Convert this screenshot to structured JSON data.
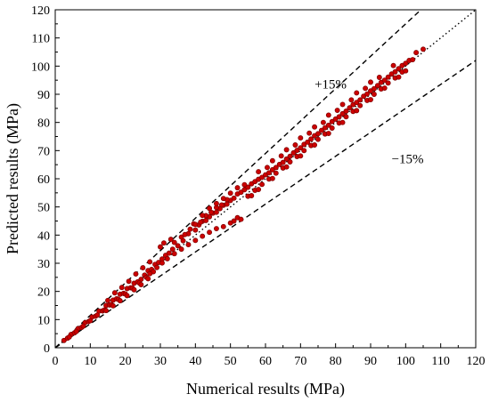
{
  "chart_data": {
    "type": "scatter",
    "xlabel": "Numerical results (MPa)",
    "ylabel": "Predicted results (MPa)",
    "xlim": [
      0,
      120
    ],
    "ylim": [
      0,
      120
    ],
    "x_ticks": [
      0,
      10,
      20,
      30,
      40,
      50,
      60,
      70,
      80,
      90,
      100,
      110,
      120
    ],
    "y_ticks": [
      0,
      10,
      20,
      30,
      40,
      50,
      60,
      70,
      80,
      90,
      100,
      110,
      120
    ],
    "grid": false,
    "marker_color": "#cc0000",
    "marker_edge_color": "#7a0000",
    "reference_lines": [
      {
        "slope": 1.0,
        "style": "dotted"
      },
      {
        "slope": 1.15,
        "style": "dashed",
        "label": "+15%"
      },
      {
        "slope": 0.85,
        "style": "dashed",
        "label": "−15%"
      }
    ],
    "series": [
      {
        "points": [
          [
            2.5,
            2.6
          ],
          [
            3.5,
            3.4
          ],
          [
            4.5,
            4.7
          ],
          [
            5.5,
            5.3
          ],
          [
            6.5,
            6.8
          ],
          [
            7.5,
            7.2
          ],
          [
            8.5,
            8.9
          ],
          [
            9.5,
            9.3
          ],
          [
            10.5,
            10.9
          ],
          [
            11.5,
            11.2
          ],
          [
            12.5,
            13.0
          ],
          [
            13.5,
            13.1
          ],
          [
            14.5,
            15.0
          ],
          [
            15.5,
            15.2
          ],
          [
            16.5,
            16.9
          ],
          [
            17.5,
            17.4
          ],
          [
            18.5,
            19.0
          ],
          [
            19.5,
            19.3
          ],
          [
            20.5,
            21.0
          ],
          [
            21.5,
            21.3
          ],
          [
            22.5,
            22.9
          ],
          [
            23.5,
            23.4
          ],
          [
            24.5,
            24.3
          ],
          [
            25.5,
            25.8
          ],
          [
            26.5,
            27.4
          ],
          [
            27.5,
            27.8
          ],
          [
            28.5,
            29.6
          ],
          [
            29.5,
            30.3
          ],
          [
            30.5,
            31.5
          ],
          [
            31.5,
            32.8
          ],
          [
            32.5,
            33.6
          ],
          [
            33.5,
            35.0
          ],
          [
            35.0,
            36.2
          ],
          [
            36.5,
            38.0
          ],
          [
            38.0,
            40.5
          ],
          [
            39.5,
            44.0
          ],
          [
            40.0,
            41.8
          ],
          [
            41.0,
            43.6
          ],
          [
            42.0,
            44.9
          ],
          [
            43.0,
            45.2
          ],
          [
            44.0,
            46.5
          ],
          [
            45.0,
            47.8
          ],
          [
            46.0,
            48.1
          ],
          [
            47.0,
            49.4
          ],
          [
            48.0,
            50.6
          ],
          [
            49.0,
            51.0
          ],
          [
            50.0,
            52.3
          ],
          [
            51.0,
            53.1
          ],
          [
            52.0,
            54.6
          ],
          [
            53.0,
            55.2
          ],
          [
            54.0,
            56.1
          ],
          [
            55.0,
            57.0
          ],
          [
            56.0,
            58.2
          ],
          [
            57.0,
            59.0
          ],
          [
            58.0,
            59.8
          ],
          [
            59.0,
            60.5
          ],
          [
            60.0,
            61.4
          ],
          [
            61.0,
            62.1
          ],
          [
            62.0,
            63.2
          ],
          [
            63.0,
            64.0
          ],
          [
            64.0,
            65.1
          ],
          [
            65.0,
            65.8
          ],
          [
            66.0,
            67.0
          ],
          [
            67.0,
            68.0
          ],
          [
            68.0,
            69.2
          ],
          [
            69.0,
            70.1
          ],
          [
            70.0,
            71.0
          ],
          [
            71.0,
            72.2
          ],
          [
            72.0,
            73.0
          ],
          [
            73.0,
            74.1
          ],
          [
            74.0,
            75.3
          ],
          [
            75.0,
            76.0
          ],
          [
            76.0,
            77.2
          ],
          [
            77.0,
            78.1
          ],
          [
            78.0,
            79.0
          ],
          [
            79.0,
            80.3
          ],
          [
            80.0,
            81.2
          ],
          [
            81.0,
            82.0
          ],
          [
            82.0,
            83.1
          ],
          [
            83.0,
            84.0
          ],
          [
            84.0,
            85.2
          ],
          [
            85.0,
            86.3
          ],
          [
            86.0,
            87.1
          ],
          [
            87.0,
            88.0
          ],
          [
            88.0,
            89.3
          ],
          [
            89.0,
            90.1
          ],
          [
            90.0,
            91.2
          ],
          [
            91.0,
            92.0
          ],
          [
            92.0,
            93.1
          ],
          [
            93.0,
            94.2
          ],
          [
            94.0,
            95.0
          ],
          [
            95.0,
            96.1
          ],
          [
            96.0,
            97.2
          ],
          [
            97.0,
            98.0
          ],
          [
            98.0,
            99.1
          ],
          [
            99.0,
            100.2
          ],
          [
            100.0,
            101.0
          ],
          [
            101.0,
            102.0
          ],
          [
            102.0,
            102.3
          ],
          [
            103.0,
            104.8
          ],
          [
            105.0,
            106.0
          ],
          [
            30.0,
            35.8
          ],
          [
            31.0,
            37.2
          ],
          [
            33.0,
            38.5
          ],
          [
            34.0,
            37.4
          ],
          [
            36.0,
            39.3
          ],
          [
            37.0,
            40.2
          ],
          [
            38.5,
            42.1
          ],
          [
            40.0,
            43.8
          ],
          [
            41.5,
            44.6
          ],
          [
            43.0,
            46.9
          ],
          [
            44.5,
            48.1
          ],
          [
            46.0,
            49.8
          ],
          [
            47.5,
            50.7
          ],
          [
            49.0,
            52.6
          ],
          [
            50.0,
            44.3
          ],
          [
            51.0,
            45.0
          ],
          [
            52.0,
            46.2
          ],
          [
            53.0,
            45.6
          ],
          [
            48.0,
            43.0
          ],
          [
            46.0,
            42.3
          ],
          [
            44.0,
            41.0
          ],
          [
            42.0,
            39.6
          ],
          [
            40.0,
            38.1
          ],
          [
            38.0,
            36.6
          ],
          [
            36.0,
            35.0
          ],
          [
            34.0,
            33.4
          ],
          [
            32.0,
            31.6
          ],
          [
            30.5,
            30.1
          ],
          [
            29.0,
            28.5
          ],
          [
            28.0,
            27.0
          ],
          [
            27.0,
            26.3
          ],
          [
            26.0,
            25.0
          ],
          [
            24.0,
            23.0
          ],
          [
            22.0,
            21.2
          ],
          [
            20.0,
            19.1
          ],
          [
            18.0,
            17.2
          ],
          [
            16.0,
            15.3
          ],
          [
            14.0,
            13.4
          ],
          [
            12.0,
            11.6
          ],
          [
            10.0,
            9.6
          ],
          [
            8.0,
            7.7
          ],
          [
            6.0,
            5.8
          ],
          [
            4.0,
            3.8
          ],
          [
            55.0,
            53.8
          ],
          [
            57.0,
            55.9
          ],
          [
            59.0,
            58.0
          ],
          [
            61.0,
            59.9
          ],
          [
            63.0,
            62.0
          ],
          [
            65.0,
            63.8
          ],
          [
            67.0,
            66.0
          ],
          [
            69.0,
            67.9
          ],
          [
            71.0,
            70.0
          ],
          [
            73.0,
            71.8
          ],
          [
            75.0,
            74.0
          ],
          [
            77.0,
            75.9
          ],
          [
            79.0,
            78.0
          ],
          [
            81.0,
            79.8
          ],
          [
            83.0,
            82.0
          ],
          [
            85.0,
            83.9
          ],
          [
            87.0,
            86.0
          ],
          [
            89.0,
            87.8
          ],
          [
            91.0,
            90.0
          ],
          [
            93.0,
            91.9
          ],
          [
            95.0,
            94.0
          ],
          [
            97.0,
            95.8
          ],
          [
            99.0,
            97.9
          ],
          [
            60.5,
            64.0
          ],
          [
            64.5,
            68.1
          ],
          [
            68.5,
            72.0
          ],
          [
            72.5,
            76.2
          ],
          [
            76.5,
            80.0
          ],
          [
            80.5,
            84.3
          ],
          [
            84.5,
            88.0
          ],
          [
            88.5,
            92.1
          ],
          [
            92.5,
            96.0
          ],
          [
            96.5,
            100.2
          ],
          [
            58.0,
            62.5
          ],
          [
            62.0,
            66.4
          ],
          [
            66.0,
            70.3
          ],
          [
            70.0,
            74.5
          ],
          [
            74.0,
            78.4
          ],
          [
            78.0,
            82.6
          ],
          [
            82.0,
            86.4
          ],
          [
            86.0,
            90.5
          ],
          [
            90.0,
            94.3
          ],
          [
            54.0,
            57.9
          ],
          [
            52.0,
            56.8
          ],
          [
            50.0,
            54.9
          ],
          [
            48.0,
            53.0
          ],
          [
            46.0,
            51.2
          ],
          [
            44.0,
            49.5
          ],
          [
            42.0,
            47.0
          ],
          [
            15.0,
            16.8
          ],
          [
            17.0,
            19.5
          ],
          [
            19.0,
            21.4
          ],
          [
            21.0,
            23.6
          ],
          [
            23.0,
            26.2
          ],
          [
            25.0,
            28.4
          ],
          [
            27.0,
            30.5
          ],
          [
            14.5,
            13.2
          ],
          [
            16.5,
            14.9
          ],
          [
            18.5,
            16.7
          ],
          [
            20.5,
            18.5
          ],
          [
            22.5,
            20.6
          ],
          [
            24.5,
            22.4
          ],
          [
            26.5,
            24.5
          ],
          [
            56.0,
            54.0
          ],
          [
            58.0,
            56.2
          ],
          [
            62.0,
            60.1
          ],
          [
            66.0,
            64.2
          ],
          [
            70.0,
            68.1
          ],
          [
            74.0,
            72.0
          ],
          [
            78.0,
            76.1
          ],
          [
            82.0,
            80.0
          ],
          [
            86.0,
            84.2
          ],
          [
            90.0,
            88.1
          ],
          [
            94.0,
            92.2
          ],
          [
            98.0,
            96.1
          ],
          [
            100.0,
            98.3
          ]
        ]
      }
    ]
  },
  "annotations": {
    "plus": "+15%",
    "minus": "−15%"
  }
}
